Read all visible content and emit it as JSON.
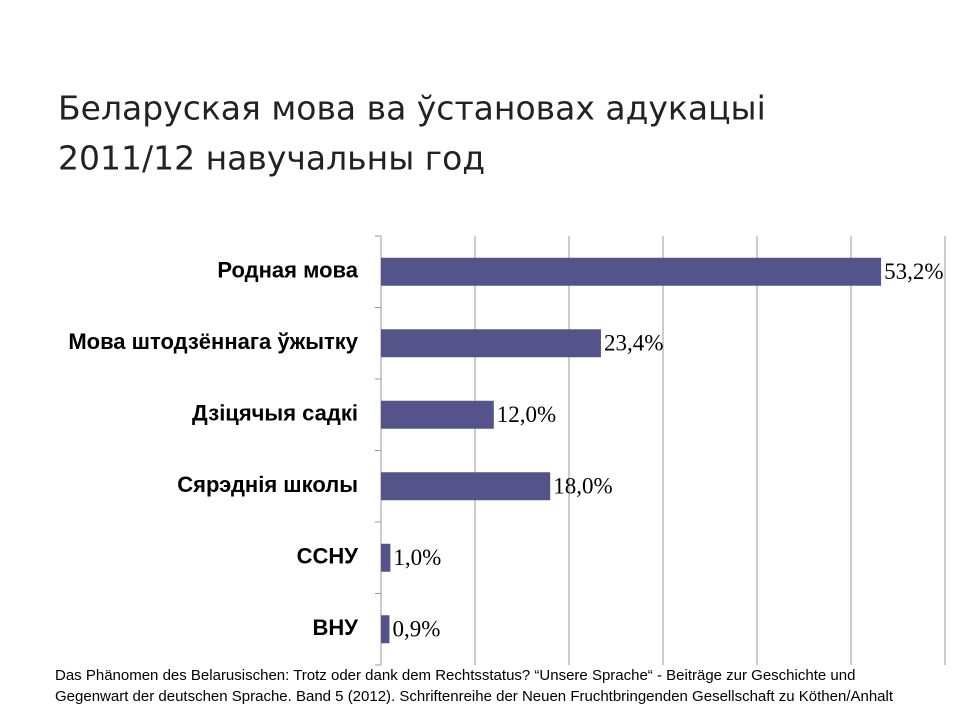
{
  "chart_data": {
    "type": "barh",
    "title": [
      "Беларуская мова ва ўстановах адукацыі",
      "2011/12 навучальны год"
    ],
    "categories": [
      "Родная мова",
      "Мова штодзённага ўжытку",
      "Дзіцячыя садкі",
      "Сярэднія школы",
      "ССНУ",
      "ВНУ"
    ],
    "values": [
      53.2,
      23.4,
      12.0,
      18.0,
      1.0,
      0.9
    ],
    "value_labels": [
      "53,2%",
      "23,4%",
      "12,0%",
      "18,0%",
      "1,0%",
      "0,9%"
    ],
    "color": "#55548a",
    "xlim": [
      0,
      60
    ],
    "xticks": [
      0,
      10,
      20,
      30,
      40,
      50,
      60
    ],
    "grid": true,
    "source": [
      "Das Phänomen des Belarusischen: Trotz oder dank dem Rechtsstatus? “Unsere Sprache“ - Beiträge zur Geschichte und",
      "Gegenwart der deutschen Sprache. Band 5 (2012). Schriftenreihe der Neuen Fruchtbringenden Gesellschaft zu Köthen/Anhalt"
    ]
  }
}
